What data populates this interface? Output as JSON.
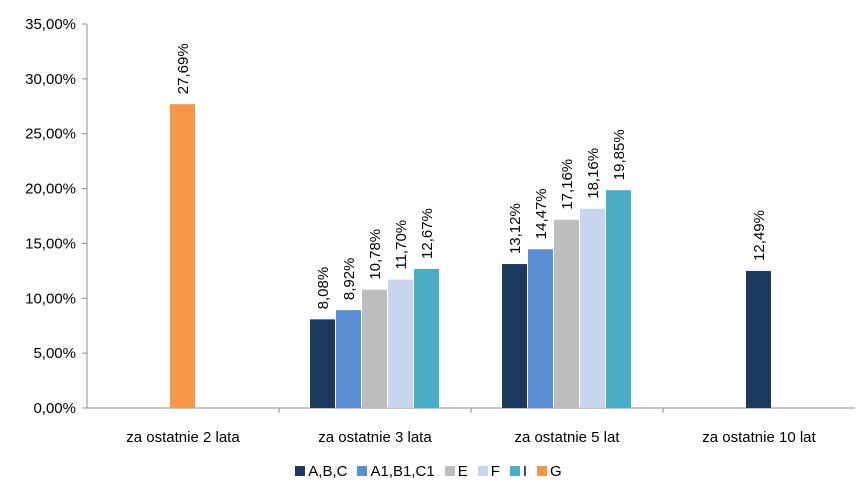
{
  "chart_data": {
    "type": "bar",
    "categories": [
      "za ostatnie 2 lata",
      "za ostatnie 3 lata",
      "za ostatnie 5 lat",
      "za ostatnie 10 lat"
    ],
    "series": [
      {
        "name": "A,B,C",
        "color": "#1b3a5f",
        "values": [
          null,
          8.08,
          13.12,
          12.49
        ],
        "labels": [
          null,
          "8,08%",
          "13,12%",
          "12,49%"
        ]
      },
      {
        "name": "A1,B1,C1",
        "color": "#5b8fd5",
        "values": [
          null,
          8.92,
          14.47,
          null
        ],
        "labels": [
          null,
          "8,92%",
          "14,47%",
          null
        ]
      },
      {
        "name": "E",
        "color": "#bdbdbd",
        "values": [
          null,
          10.78,
          17.16,
          null
        ],
        "labels": [
          null,
          "10,78%",
          "17,16%",
          null
        ]
      },
      {
        "name": "F",
        "color": "#c7d6ee",
        "values": [
          null,
          11.7,
          18.16,
          null
        ],
        "labels": [
          null,
          "11,70%",
          "18,16%",
          null
        ]
      },
      {
        "name": "I",
        "color": "#4bacc6",
        "values": [
          null,
          12.67,
          19.85,
          null
        ],
        "labels": [
          null,
          "12,67%",
          "19,85%",
          null
        ]
      },
      {
        "name": "G",
        "color": "#f79646",
        "values": [
          27.69,
          null,
          null,
          null
        ],
        "labels": [
          "27,69%",
          null,
          null,
          null
        ]
      }
    ],
    "yticks": [
      "0,00%",
      "5,00%",
      "10,00%",
      "15,00%",
      "20,00%",
      "25,00%",
      "30,00%",
      "35,00%"
    ],
    "ylim": [
      0,
      35
    ],
    "ystep": 5,
    "grid": false,
    "legend_position": "bottom"
  }
}
